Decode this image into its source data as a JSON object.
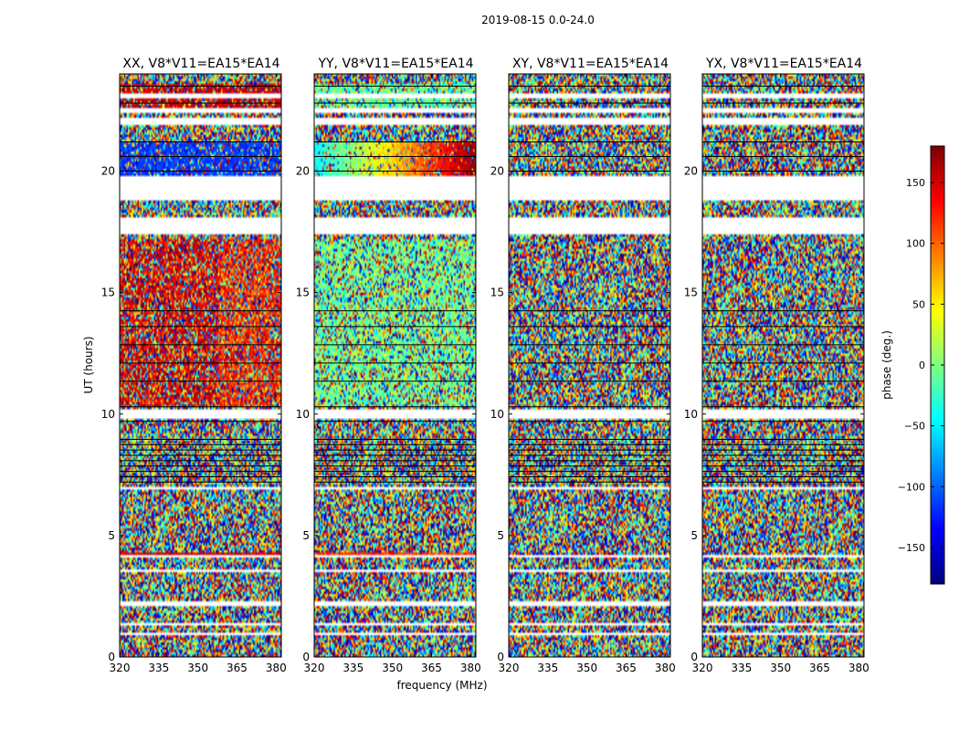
{
  "chart_data": {
    "type": "heatmap",
    "suptitle": "2019-08-15 0.0-24.0",
    "xlabel": "frequency (MHz)",
    "ylabel": "UT (hours)",
    "xlim": [
      320,
      382
    ],
    "ylim": [
      0,
      24
    ],
    "xticks": [
      "320",
      "335",
      "350",
      "365",
      "380"
    ],
    "yticks": [
      "0",
      "5",
      "10",
      "15",
      "20"
    ],
    "colorbar": {
      "label": "phase (deg.)",
      "range": [
        -180,
        180
      ],
      "ticks": [
        "150",
        "100",
        "50",
        "0",
        "−50",
        "−100",
        "−150"
      ],
      "colormap": "jet"
    },
    "panels": [
      {
        "title": "XX, V8*V11=EA15*EA14",
        "mode": "xx"
      },
      {
        "title": "YY, V8*V11=EA15*EA14",
        "mode": "yy"
      },
      {
        "title": "XY, V8*V11=EA15*EA14",
        "mode": "noise"
      },
      {
        "title": "YX, V8*V11=EA15*EA14",
        "mode": "noise"
      }
    ]
  }
}
